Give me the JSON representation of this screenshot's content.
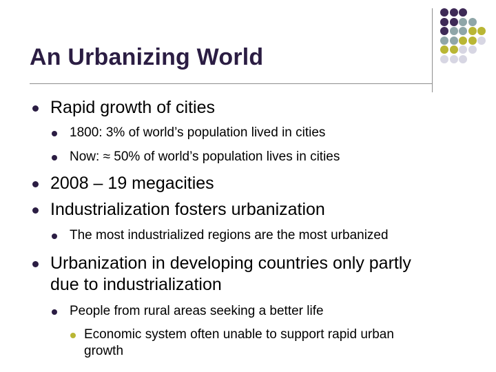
{
  "slide": {
    "title": "An Urbanizing World",
    "bullets": {
      "b1": "Rapid growth of cities",
      "b1a": "1800: 3% of world’s population lived in cities",
      "b1b": "Now: ≈ 50% of world’s population lives in cities",
      "b2": "2008 – 19 megacities",
      "b3": "Industrialization fosters urbanization",
      "b3a": "The most industrialized regions are the most urbanized",
      "b4_line1": "Urbanization in developing countries only partly",
      "b4_line2": "due to industrialization",
      "b4a": "People from rural areas seeking a better life",
      "b4a1_line1": "Economic system often unable to support rapid urban",
      "b4a1_line2": "growth"
    }
  },
  "colors": {
    "title": "#2b1d43",
    "bullet_primary": "#2b1d43",
    "bullet_secondary": "#b9b634",
    "dot_purple": "#3e2a56",
    "dot_teal": "#8fa6a8",
    "dot_olive": "#b9b634",
    "dot_lavender": "#d7d6e3"
  },
  "decoration": {
    "dot_grid": [
      [
        "purple",
        "purple",
        "purple",
        "none",
        "none",
        "none"
      ],
      [
        "purple",
        "purple",
        "teal",
        "teal",
        "none",
        "none"
      ],
      [
        "purple",
        "teal",
        "teal",
        "olive",
        "olive",
        "none"
      ],
      [
        "teal",
        "teal",
        "olive",
        "olive",
        "lavender",
        "none"
      ],
      [
        "olive",
        "olive",
        "lavender",
        "lavender",
        "none",
        "none"
      ],
      [
        "lavender",
        "lavender",
        "lavender",
        "none",
        "none",
        "none"
      ]
    ]
  }
}
